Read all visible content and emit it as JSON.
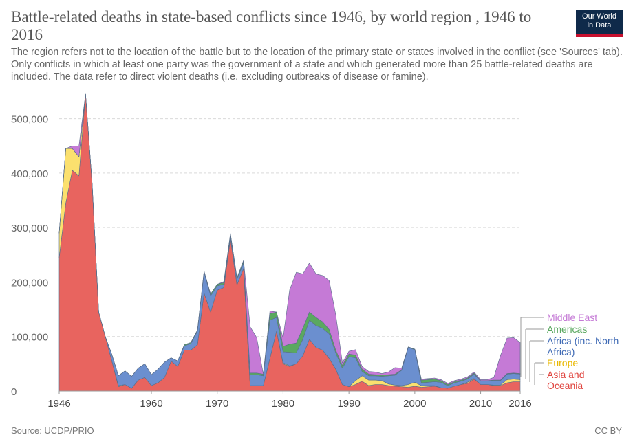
{
  "header": {
    "title": "Battle-related deaths in state-based conflicts since 1946, by world region , 1946 to 2016",
    "subtitle": "The region refers not to the location of the battle but to the location of the primary state or states involved in the conflict (see 'Sources' tab). Only conflicts in which at least one party was the government of a state and which generated more than 25 battle-related deaths are included. The data refer to direct violent deaths (i.e. excluding outbreaks of disease or famine).",
    "logo_line1": "Our World",
    "logo_line2": "in Data"
  },
  "footer": {
    "source": "Source: UCDP/PRIO",
    "license": "CC BY"
  },
  "colors": {
    "asia": "#e8645f",
    "europe": "#fbe06e",
    "africa": "#6b8fcf",
    "americas": "#5aa860",
    "middle_east": "#c57ad6"
  },
  "chart_data": {
    "type": "area",
    "stacked": true,
    "title": "Battle-related deaths in state-based conflicts since 1946, by world region , 1946 to 2016",
    "xlabel": "",
    "ylabel": "",
    "xlim": [
      1946,
      2016
    ],
    "ylim": [
      0,
      550000
    ],
    "yticks": [
      0,
      100000,
      200000,
      300000,
      400000,
      500000
    ],
    "ytick_labels": [
      "0",
      "100,000",
      "200,000",
      "300,000",
      "400,000",
      "500,000"
    ],
    "xticks": [
      1946,
      1960,
      1970,
      1980,
      1990,
      2000,
      2010,
      2016
    ],
    "xtick_labels": [
      "1946",
      "1960",
      "1970",
      "1980",
      "1990",
      "2000",
      "2010",
      "2016"
    ],
    "grid": true,
    "legend_position": "right",
    "x": [
      1946,
      1947,
      1948,
      1949,
      1950,
      1951,
      1952,
      1953,
      1954,
      1955,
      1956,
      1957,
      1958,
      1959,
      1960,
      1961,
      1962,
      1963,
      1964,
      1965,
      1966,
      1967,
      1968,
      1969,
      1970,
      1971,
      1972,
      1973,
      1974,
      1975,
      1976,
      1977,
      1978,
      1979,
      1980,
      1981,
      1982,
      1983,
      1984,
      1985,
      1986,
      1987,
      1988,
      1989,
      1990,
      1991,
      1992,
      1993,
      1994,
      1995,
      1996,
      1997,
      1998,
      1999,
      2000,
      2001,
      2002,
      2003,
      2004,
      2005,
      2006,
      2007,
      2008,
      2009,
      2010,
      2011,
      2012,
      2013,
      2014,
      2015,
      2016
    ],
    "series": [
      {
        "name": "Asia and Oceania",
        "color": "#e8645f",
        "values": [
          245000,
          345000,
          405000,
          395000,
          545000,
          380000,
          145000,
          100000,
          55000,
          8000,
          12000,
          5000,
          20000,
          25000,
          10000,
          15000,
          25000,
          55000,
          45000,
          75000,
          75000,
          85000,
          180000,
          145000,
          185000,
          190000,
          280000,
          195000,
          225000,
          10000,
          10000,
          10000,
          60000,
          110000,
          50000,
          45000,
          50000,
          65000,
          95000,
          80000,
          75000,
          60000,
          40000,
          12000,
          8000,
          12000,
          18000,
          10000,
          12000,
          12000,
          10000,
          9000,
          8000,
          7000,
          9000,
          7000,
          8000,
          9000,
          6000,
          5000,
          9000,
          12000,
          14000,
          22000,
          12000,
          12000,
          10000,
          10000,
          15000,
          17000,
          17000
        ]
      },
      {
        "name": "Europe",
        "color": "#fbe06e",
        "values": [
          45000,
          100000,
          40000,
          35000,
          0,
          0,
          0,
          0,
          0,
          2000,
          0,
          0,
          0,
          0,
          0,
          0,
          0,
          0,
          0,
          0,
          0,
          0,
          0,
          0,
          0,
          0,
          0,
          0,
          0,
          0,
          0,
          0,
          0,
          0,
          2000,
          1000,
          0,
          0,
          0,
          0,
          0,
          0,
          0,
          0,
          0,
          7000,
          10000,
          10000,
          8000,
          7000,
          3000,
          2000,
          2000,
          5000,
          7000,
          3000,
          2000,
          1000,
          0,
          0,
          0,
          0,
          2000,
          1000,
          0,
          0,
          1000,
          1000,
          6000,
          5000,
          4000
        ]
      },
      {
        "name": "Africa (inc. North Africa)",
        "color": "#6b8fcf",
        "values": [
          0,
          0,
          0,
          0,
          0,
          0,
          0,
          0,
          12000,
          18000,
          25000,
          22000,
          22000,
          25000,
          20000,
          25000,
          28000,
          6000,
          10000,
          8000,
          12000,
          25000,
          38000,
          30000,
          8000,
          6000,
          6000,
          10000,
          10000,
          20000,
          20000,
          18000,
          70000,
          25000,
          20000,
          25000,
          20000,
          30000,
          35000,
          40000,
          40000,
          45000,
          30000,
          30000,
          55000,
          42000,
          8000,
          8000,
          8000,
          8000,
          15000,
          18000,
          28000,
          68000,
          60000,
          5000,
          6000,
          7000,
          10000,
          5000,
          6000,
          6000,
          6000,
          8000,
          6000,
          6000,
          8000,
          8000,
          10000,
          10000,
          10000
        ]
      },
      {
        "name": "Americas",
        "color": "#5aa860",
        "values": [
          0,
          0,
          0,
          0,
          0,
          0,
          0,
          0,
          0,
          0,
          0,
          0,
          0,
          0,
          0,
          0,
          0,
          0,
          0,
          2000,
          2000,
          2000,
          2000,
          3000,
          3000,
          3000,
          3000,
          3000,
          3000,
          3000,
          3000,
          3000,
          12000,
          10000,
          10000,
          15000,
          18000,
          20000,
          15000,
          15000,
          12000,
          8000,
          5000,
          5000,
          5000,
          5000,
          4000,
          3000,
          2000,
          2000,
          2000,
          2000,
          1000,
          1000,
          1000,
          5000,
          5000,
          5000,
          3000,
          2000,
          2000,
          2000,
          2000,
          2000,
          1000,
          1000,
          1000,
          1000,
          1000,
          1000,
          1000
        ]
      },
      {
        "name": "Middle East",
        "color": "#c57ad6",
        "values": [
          0,
          0,
          5000,
          20000,
          0,
          0,
          0,
          0,
          0,
          0,
          0,
          0,
          0,
          0,
          0,
          0,
          0,
          0,
          0,
          0,
          0,
          0,
          0,
          0,
          0,
          2000,
          0,
          0,
          2000,
          85000,
          65000,
          0,
          5000,
          0,
          15000,
          100000,
          130000,
          100000,
          90000,
          80000,
          85000,
          90000,
          65000,
          5000,
          5000,
          10000,
          5000,
          5000,
          5000,
          3000,
          5000,
          12000,
          3000,
          0,
          0,
          2000,
          2000,
          2000,
          2000,
          2000,
          2000,
          2000,
          2000,
          2000,
          2000,
          2000,
          5000,
          45000,
          65000,
          65000,
          57000
        ]
      }
    ]
  },
  "legend": {
    "middle_east": "Middle East",
    "americas": "Americas",
    "africa_line1": "Africa (inc. North",
    "africa_line2": "Africa)",
    "europe": "Europe",
    "asia_line1": "Asia and",
    "asia_line2": "Oceania"
  }
}
